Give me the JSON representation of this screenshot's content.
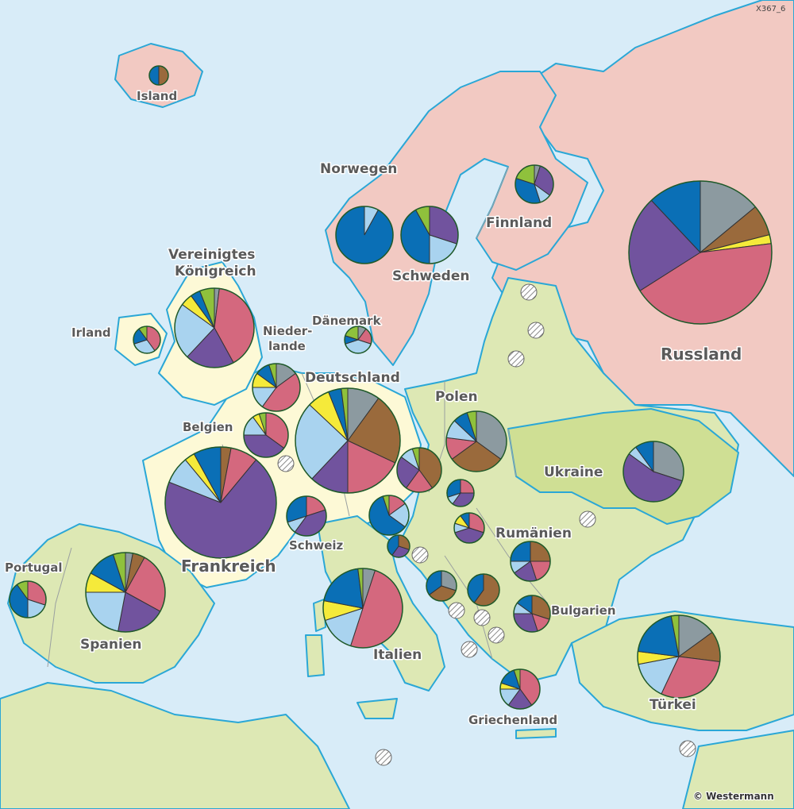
{
  "map_code": "X367_6",
  "copyright": "© Westermann",
  "colors": {
    "sea": "#d8ecf8",
    "russia_nordic": "#f2c9c2",
    "east_europe": "#dde8b4",
    "eastern_green": "#cfdf94",
    "west_europe": "#fdf9d6",
    "coast": "#2aa7d6",
    "grey": "#8c9aa0",
    "brown": "#9a6a3c",
    "pink": "#d4687e",
    "purple": "#71539e",
    "lightblue": "#a9d3ef",
    "yellow": "#f5ea3a",
    "blue": "#0a6fb6",
    "green": "#8fc13c",
    "hatch": "hatched-circle (no data)"
  },
  "labels": {
    "island": "Island",
    "norwegen": "Norwegen",
    "schweden": "Schweden",
    "finnland": "Finnland",
    "russland": "Russland",
    "vereinigtes": "Vereinigtes",
    "koenigreich": "Königreich",
    "irland": "Irland",
    "daenemark": "Dänemark",
    "nieder": "Nieder-",
    "lande": "lande",
    "deutschland": "Deutschland",
    "polen": "Polen",
    "belgien": "Belgien",
    "ukraine": "Ukraine",
    "frankreich": "Frankreich",
    "schweiz": "Schweiz",
    "rumaenien": "Rumänien",
    "portugal": "Portugal",
    "spanien": "Spanien",
    "italien": "Italien",
    "bulgarien": "Bulgarien",
    "tuerkei": "Türkei",
    "griechenland": "Griechenland"
  }
}
